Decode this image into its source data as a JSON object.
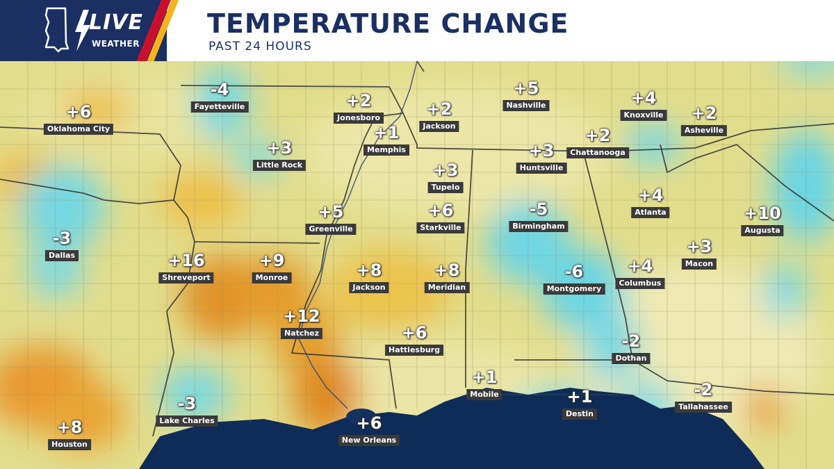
{
  "header": {
    "logo_live": "LIVE",
    "logo_weather": "WEATHER",
    "title": "TEMPERATURE CHANGE",
    "subtitle": "PAST 24 HOURS"
  },
  "colors": {
    "navy": "#1b2f63",
    "red": "#c8102e",
    "gold": "#f5b21b",
    "warm": "#e8a22a",
    "cool": "#66d6e0",
    "neutral": "#e3e08a",
    "water": "#0e2a55"
  },
  "cities": [
    {
      "name": "Oklahoma City",
      "value": "+6"
    },
    {
      "name": "Fayetteville",
      "value": "-4"
    },
    {
      "name": "Jonesboro",
      "value": "+2"
    },
    {
      "name": "Jackson",
      "value": "+2"
    },
    {
      "name": "Nashville",
      "value": "+5"
    },
    {
      "name": "Knoxville",
      "value": "+4"
    },
    {
      "name": "Asheville",
      "value": "+2"
    },
    {
      "name": "Memphis",
      "value": "+1"
    },
    {
      "name": "Chattanooga",
      "value": "+2"
    },
    {
      "name": "Little Rock",
      "value": "+3"
    },
    {
      "name": "Huntsville",
      "value": "+3"
    },
    {
      "name": "Tupelo",
      "value": "+3"
    },
    {
      "name": "Atlanta",
      "value": "+4"
    },
    {
      "name": "Augusta",
      "value": "+10"
    },
    {
      "name": "Greenville",
      "value": "+5"
    },
    {
      "name": "Starkville",
      "value": "+6"
    },
    {
      "name": "Birmingham",
      "value": "-5"
    },
    {
      "name": "Dallas",
      "value": "-3"
    },
    {
      "name": "Macon",
      "value": "+3"
    },
    {
      "name": "Shreveport",
      "value": "+16"
    },
    {
      "name": "Monroe",
      "value": "+9"
    },
    {
      "name": "Jackson",
      "value": "+8"
    },
    {
      "name": "Meridian",
      "value": "+8"
    },
    {
      "name": "Montgomery",
      "value": "-6"
    },
    {
      "name": "Columbus",
      "value": "+4"
    },
    {
      "name": "Natchez",
      "value": "+12"
    },
    {
      "name": "Hattiesburg",
      "value": "+6"
    },
    {
      "name": "Dothan",
      "value": "-2"
    },
    {
      "name": "Mobile",
      "value": "+1"
    },
    {
      "name": "Destin",
      "value": "+1"
    },
    {
      "name": "Tallahassee",
      "value": "-2"
    },
    {
      "name": "Lake Charles",
      "value": "-3"
    },
    {
      "name": "New Orleans",
      "value": "+6"
    },
    {
      "name": "Houston",
      "value": "+8"
    }
  ]
}
